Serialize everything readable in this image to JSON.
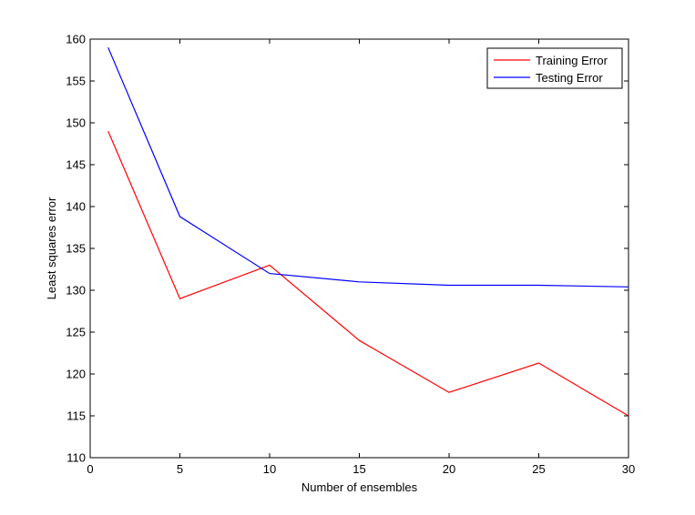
{
  "chart_data": {
    "type": "line",
    "title": "",
    "xlabel": "Number of ensembles",
    "ylabel": "Least squares error",
    "xlim": [
      0,
      30
    ],
    "ylim": [
      110,
      160
    ],
    "xticks": [
      0,
      5,
      10,
      15,
      20,
      25,
      30
    ],
    "yticks": [
      110,
      115,
      120,
      125,
      130,
      135,
      140,
      145,
      150,
      155,
      160
    ],
    "grid": false,
    "legend_position": "top-right",
    "x": [
      1,
      5,
      10,
      15,
      20,
      25,
      30
    ],
    "series": [
      {
        "name": "Training Error",
        "color": "#ff0000",
        "values": [
          149,
          129,
          133,
          124,
          117.8,
          121.3,
          115
        ]
      },
      {
        "name": "Testing Error",
        "color": "#0000ff",
        "values": [
          159,
          138.8,
          132,
          131,
          130.6,
          130.6,
          130.4
        ]
      }
    ]
  }
}
